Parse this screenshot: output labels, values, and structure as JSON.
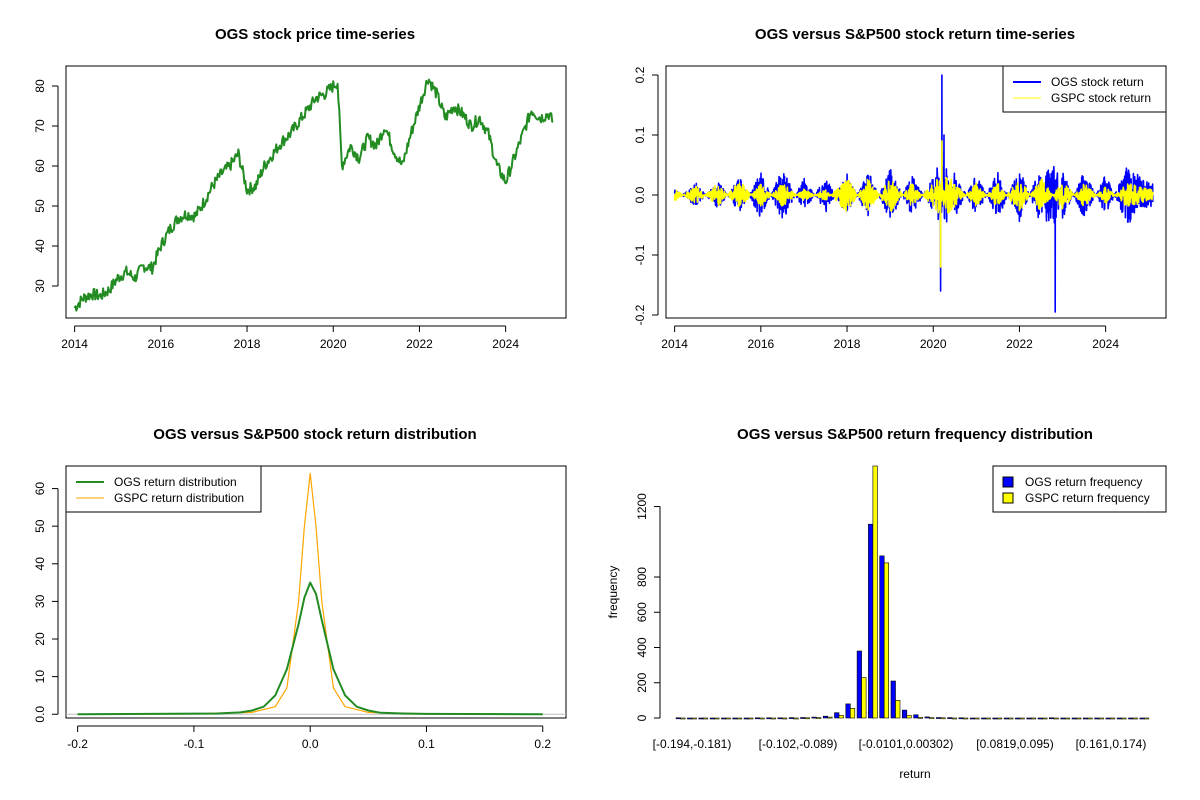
{
  "colors": {
    "ogs_price": "#228B22",
    "ogs_return": "#0000FF",
    "gspc_return": "#FFFF00",
    "ogs_density": "#228B22",
    "gspc_density": "#FFA500",
    "ogs_bar": "#0000FF",
    "gspc_bar": "#FFFF00"
  },
  "chart_data": [
    {
      "type": "line",
      "title": "OGS stock price time-series",
      "xlabel": "",
      "ylabel": "",
      "xlim": [
        2013.8,
        2025.4
      ],
      "ylim": [
        22,
        85
      ],
      "x_ticks": [
        2014,
        2016,
        2018,
        2020,
        2022,
        2024
      ],
      "y_ticks": [
        30,
        40,
        50,
        60,
        70,
        80
      ],
      "series": [
        {
          "name": "OGS price",
          "x": [
            2014.0,
            2014.2,
            2014.4,
            2014.6,
            2014.8,
            2015.0,
            2015.2,
            2015.4,
            2015.6,
            2015.8,
            2016.0,
            2016.2,
            2016.4,
            2016.6,
            2016.8,
            2017.0,
            2017.2,
            2017.4,
            2017.6,
            2017.8,
            2018.0,
            2018.2,
            2018.4,
            2018.6,
            2018.8,
            2019.0,
            2019.2,
            2019.4,
            2019.6,
            2019.8,
            2020.0,
            2020.1,
            2020.2,
            2020.4,
            2020.6,
            2020.8,
            2021.0,
            2021.2,
            2021.4,
            2021.6,
            2021.8,
            2022.0,
            2022.2,
            2022.4,
            2022.6,
            2022.8,
            2023.0,
            2023.2,
            2023.4,
            2023.6,
            2023.8,
            2024.0,
            2024.2,
            2024.4,
            2024.6,
            2024.8,
            2025.0,
            2025.1
          ],
          "values": [
            24.5,
            27,
            28,
            27.5,
            29,
            32,
            33.5,
            32,
            35,
            34.5,
            40,
            44,
            47,
            48,
            47.5,
            51,
            55,
            58,
            60,
            63,
            54,
            55,
            60,
            63,
            66,
            68,
            71,
            74,
            77,
            78,
            80,
            81,
            60,
            65,
            62,
            67,
            65,
            70,
            64,
            60,
            68,
            75,
            82,
            78,
            72,
            75,
            73,
            70,
            72,
            68,
            60,
            56,
            62,
            68,
            74,
            72,
            73,
            71
          ]
        }
      ]
    },
    {
      "type": "line",
      "title": "OGS versus S&P500 stock return time-series",
      "xlabel": "",
      "ylabel": "",
      "xlim": [
        2013.8,
        2025.4
      ],
      "ylim": [
        -0.205,
        0.215
      ],
      "x_ticks": [
        2014,
        2016,
        2018,
        2020,
        2022,
        2024
      ],
      "y_ticks": [
        -0.2,
        -0.1,
        0.0,
        0.1,
        0.2
      ],
      "legend": {
        "position": "top-right",
        "entries": [
          "OGS stock return",
          "GSPC stock return"
        ]
      },
      "series": [
        {
          "name": "OGS stock return",
          "x": [
            2014.0,
            2014.5,
            2015.0,
            2015.5,
            2016.0,
            2016.5,
            2017.0,
            2017.5,
            2018.0,
            2018.5,
            2019.0,
            2019.5,
            2020.0,
            2020.17,
            2020.2,
            2020.22,
            2020.25,
            2020.3,
            2020.5,
            2021.0,
            2021.5,
            2022.0,
            2022.5,
            2022.83,
            2022.85,
            2023.0,
            2023.5,
            2024.0,
            2024.5,
            2025.0
          ],
          "values": [
            0.01,
            -0.02,
            0.025,
            -0.03,
            0.04,
            -0.045,
            0.03,
            -0.03,
            0.035,
            -0.04,
            0.045,
            -0.035,
            0.03,
            -0.16,
            0.2,
            -0.08,
            0.1,
            -0.05,
            0.04,
            -0.035,
            0.04,
            -0.045,
            0.05,
            -0.195,
            0.06,
            -0.04,
            0.04,
            -0.035,
            0.05,
            0.02
          ]
        },
        {
          "name": "GSPC stock return",
          "x": [
            2014.0,
            2014.5,
            2015.0,
            2015.5,
            2016.0,
            2016.5,
            2017.0,
            2017.5,
            2018.0,
            2018.5,
            2019.0,
            2019.5,
            2020.0,
            2020.17,
            2020.2,
            2020.25,
            2020.3,
            2020.5,
            2021.0,
            2021.5,
            2022.0,
            2022.5,
            2023.0,
            2023.5,
            2024.0,
            2024.5,
            2025.0
          ],
          "values": [
            0.01,
            -0.015,
            0.02,
            -0.025,
            0.02,
            -0.02,
            0.01,
            -0.01,
            0.03,
            -0.03,
            0.03,
            -0.02,
            0.02,
            -0.12,
            0.09,
            -0.06,
            0.05,
            0.02,
            -0.02,
            0.02,
            -0.03,
            0.03,
            -0.025,
            0.02,
            -0.015,
            0.02,
            0.01
          ]
        }
      ]
    },
    {
      "type": "line",
      "title": "OGS versus S&P500 stock return distribution",
      "xlabel": "",
      "ylabel": "",
      "xlim": [
        -0.21,
        0.22
      ],
      "ylim": [
        -1,
        66
      ],
      "x_ticks": [
        -0.2,
        -0.1,
        0.0,
        0.1,
        0.2
      ],
      "y_ticks": [
        0,
        10,
        20,
        30,
        40,
        50,
        60
      ],
      "legend": {
        "position": "top-left",
        "entries": [
          "OGS return distribution",
          "GSPC return distribution"
        ]
      },
      "series": [
        {
          "name": "OGS return distribution",
          "x": [
            -0.2,
            -0.08,
            -0.06,
            -0.05,
            -0.04,
            -0.03,
            -0.02,
            -0.01,
            -0.005,
            0.0,
            0.005,
            0.01,
            0.02,
            0.03,
            0.04,
            0.05,
            0.06,
            0.08,
            0.1,
            0.2
          ],
          "values": [
            0,
            0.2,
            0.5,
            1,
            2,
            5,
            12,
            24,
            31,
            35,
            32,
            25,
            12,
            5,
            2,
            1,
            0.4,
            0.2,
            0.1,
            0
          ]
        },
        {
          "name": "GSPC return distribution",
          "x": [
            -0.2,
            -0.1,
            -0.05,
            -0.03,
            -0.02,
            -0.01,
            -0.005,
            0.0,
            0.005,
            0.01,
            0.02,
            0.03,
            0.05,
            0.1,
            0.2
          ],
          "values": [
            0,
            0.1,
            0.5,
            2,
            7,
            30,
            50,
            64,
            50,
            30,
            7,
            2,
            0.5,
            0.1,
            0
          ]
        }
      ]
    },
    {
      "type": "bar",
      "title": "OGS versus S&P500 return frequency distribution",
      "xlabel": "return",
      "ylabel": "frequency",
      "ylim": [
        0,
        1430
      ],
      "y_ticks": [
        0,
        200,
        400,
        600,
        800,
        1200
      ],
      "x_tick_labels": [
        "[-0.194,-0.181)",
        "[-0.102,-0.089)",
        "[-0.0101,0.00302)",
        "[0.0819,0.095)",
        "[0.161,0.174)"
      ],
      "legend": {
        "position": "top-right",
        "entries": [
          "OGS return frequency",
          "GSPC return frequency"
        ]
      },
      "series": [
        {
          "name": "OGS return frequency",
          "values": [
            1,
            0,
            0,
            0,
            0,
            0,
            0,
            1,
            1,
            1,
            2,
            3,
            5,
            10,
            30,
            80,
            380,
            1100,
            920,
            210,
            45,
            18,
            6,
            3,
            2,
            1,
            0,
            0,
            0,
            0,
            0,
            0,
            0,
            1,
            0,
            0,
            0,
            0,
            0,
            0,
            0,
            0
          ]
        },
        {
          "name": "GSPC return frequency",
          "values": [
            0,
            0,
            0,
            0,
            0,
            0,
            0,
            0,
            0,
            0,
            0,
            1,
            2,
            5,
            15,
            55,
            230,
            1500,
            880,
            100,
            15,
            4,
            2,
            1,
            0,
            0,
            0,
            0,
            0,
            0,
            0,
            0,
            0,
            0,
            0,
            0,
            0,
            0,
            0,
            0,
            0,
            0
          ]
        }
      ]
    }
  ]
}
